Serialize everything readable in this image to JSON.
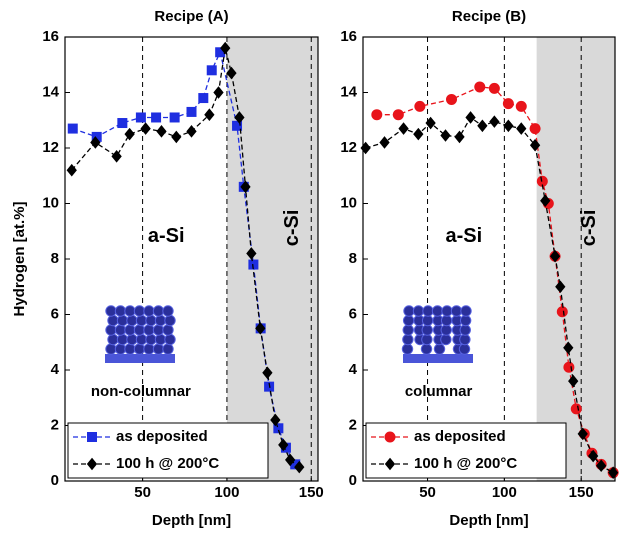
{
  "chart_data": [
    {
      "type": "line",
      "title": "Recipe (A)",
      "xlabel": "Depth [nm]",
      "ylabel": "Hydrogen [at.%]",
      "xlim": [
        4,
        154
      ],
      "xticks": [
        50,
        100,
        150
      ],
      "ylim": [
        0,
        16
      ],
      "yticks": [
        0,
        2,
        4,
        6,
        8,
        10,
        12,
        14,
        16
      ],
      "grid_x": true,
      "shaded_from": 100,
      "legend": "lower left",
      "annotations": [
        "a-Si",
        "c-Si",
        "non-columnar"
      ],
      "series": [
        {
          "name": "as deposited",
          "color": "#1f2fe0",
          "marker": "square",
          "x": [
            8.6,
            22.8,
            38,
            49,
            58,
            69,
            79,
            86,
            91,
            96,
            106,
            110,
            115.7,
            120,
            125,
            130.5,
            135,
            140.5
          ],
          "values": [
            12.7,
            12.4,
            12.9,
            13.1,
            13.1,
            13.1,
            13.3,
            13.8,
            14.8,
            15.45,
            12.8,
            10.6,
            7.8,
            5.5,
            3.4,
            1.9,
            1.2,
            0.6
          ]
        },
        {
          "name": "100 h @ 200°C",
          "color": "#000000",
          "marker": "diamond",
          "x": [
            8,
            22,
            34.6,
            42.3,
            51.8,
            61.2,
            70,
            79,
            89.6,
            95,
            99,
            102.7,
            107.4,
            111,
            114.5,
            119.8,
            124,
            128.7,
            133.4,
            137.5,
            142.9
          ],
          "values": [
            11.2,
            12.2,
            11.7,
            12.5,
            12.7,
            12.6,
            12.4,
            12.6,
            13.2,
            14.0,
            15.6,
            14.7,
            13.1,
            10.6,
            8.2,
            5.5,
            3.9,
            2.2,
            1.3,
            0.76,
            0.5
          ]
        }
      ]
    },
    {
      "type": "line",
      "title": "Recipe (B)",
      "xlabel": "Depth [nm]",
      "xlim": [
        8,
        172
      ],
      "xticks": [
        50,
        100,
        150
      ],
      "ylim": [
        0,
        16
      ],
      "yticks": [
        0,
        2,
        4,
        6,
        8,
        10,
        12,
        14,
        16
      ],
      "grid_x": true,
      "shaded_from": 121,
      "legend": "lower left",
      "annotations": [
        "a-Si",
        "c-Si",
        "columnar"
      ],
      "series": [
        {
          "name": "as deposited",
          "color": "#e8141b",
          "marker": "circle",
          "x": [
            17,
            31,
            45,
            65.6,
            84,
            93.5,
            102.6,
            111,
            120,
            124.7,
            128.6,
            133,
            137.7,
            142,
            146.8,
            152,
            157,
            163,
            170.8
          ],
          "values": [
            13.2,
            13.2,
            13.5,
            13.75,
            14.2,
            14.15,
            13.6,
            13.5,
            12.7,
            10.8,
            10.0,
            8.1,
            6.1,
            4.1,
            2.6,
            1.7,
            1.0,
            0.6,
            0.3
          ]
        },
        {
          "name": "100 h @ 200°C",
          "color": "#000000",
          "marker": "diamond",
          "x": [
            9.7,
            22,
            34.4,
            44,
            52,
            61.7,
            70.8,
            78,
            85.7,
            93.5,
            102.6,
            111,
            120,
            126.6,
            133,
            136.4,
            141.6,
            144.8,
            151,
            157.8,
            163,
            170.8
          ],
          "values": [
            12.0,
            12.2,
            12.7,
            12.5,
            12.9,
            12.45,
            12.4,
            13.1,
            12.8,
            12.95,
            12.8,
            12.7,
            12.1,
            10.1,
            8.1,
            7.0,
            4.8,
            3.6,
            1.7,
            0.9,
            0.55,
            0.3
          ]
        }
      ]
    }
  ]
}
